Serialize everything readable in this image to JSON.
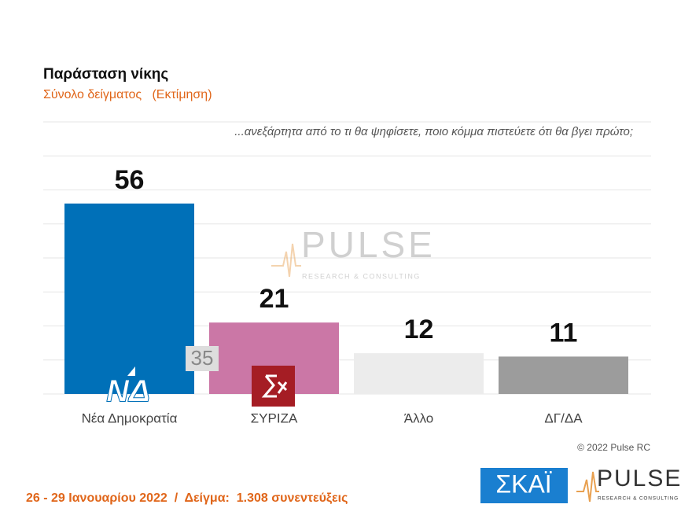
{
  "chart_data": {
    "type": "bar",
    "title": "Παράσταση νίκης",
    "subtitle": "Σύνολο δείγματος   (Εκτίμηση)",
    "question": "...ανεξάρτητα από το τι θα ψηφίσετε, ποιο κόμμα πιστεύετε ότι θα βγει πρώτο;",
    "categories": [
      "Νέα Δημοκρατία",
      "ΣΥΡΙΖΑ",
      "Άλλο",
      "ΔΓ/ΔΑ"
    ],
    "values": [
      56,
      21,
      12,
      11
    ],
    "colors": [
      "#0070b8",
      "#cb77a6",
      "#ececec",
      "#9c9c9c"
    ],
    "ylim": [
      0,
      80
    ],
    "yticks": [
      0,
      10,
      20,
      30,
      40,
      50,
      60,
      70,
      80
    ],
    "grid": true,
    "annotation": "35"
  },
  "footer": {
    "sample": "26 - 29 Ιανουαρίου 2022  /  Δείγμα:  1.308 συνεντεύξεις",
    "copyright": "© 2022 Pulse RC"
  },
  "logos": {
    "nd": "ΝΔ",
    "skai": "ΣΚΑΪ",
    "pulse": "PULSE",
    "pulse_sub": "RESEARCH & CONSULTING"
  }
}
